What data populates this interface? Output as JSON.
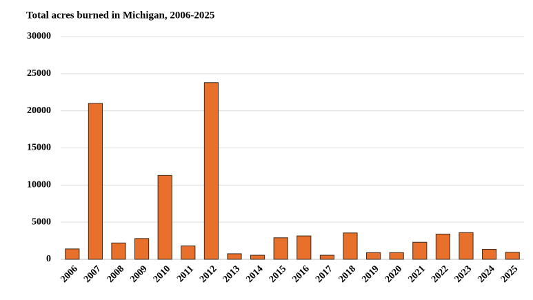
{
  "chart_data": {
    "type": "bar",
    "title": "Total acres burned in Michigan, 2006-2025",
    "categories": [
      "2006",
      "2007",
      "2008",
      "2009",
      "2010",
      "2011",
      "2012",
      "2013",
      "2014",
      "2015",
      "2016",
      "2017",
      "2018",
      "2019",
      "2020",
      "2021",
      "2022",
      "2023",
      "2024",
      "2025"
    ],
    "values": [
      1400,
      21000,
      2200,
      2800,
      11300,
      1800,
      23800,
      750,
      550,
      2900,
      3150,
      550,
      3550,
      900,
      900,
      2300,
      3400,
      3600,
      1350,
      950
    ],
    "color": "#e8702a",
    "ylim": [
      0,
      30000
    ],
    "yticks": [
      0,
      5000,
      10000,
      15000,
      20000,
      25000,
      30000
    ],
    "grid": true
  }
}
